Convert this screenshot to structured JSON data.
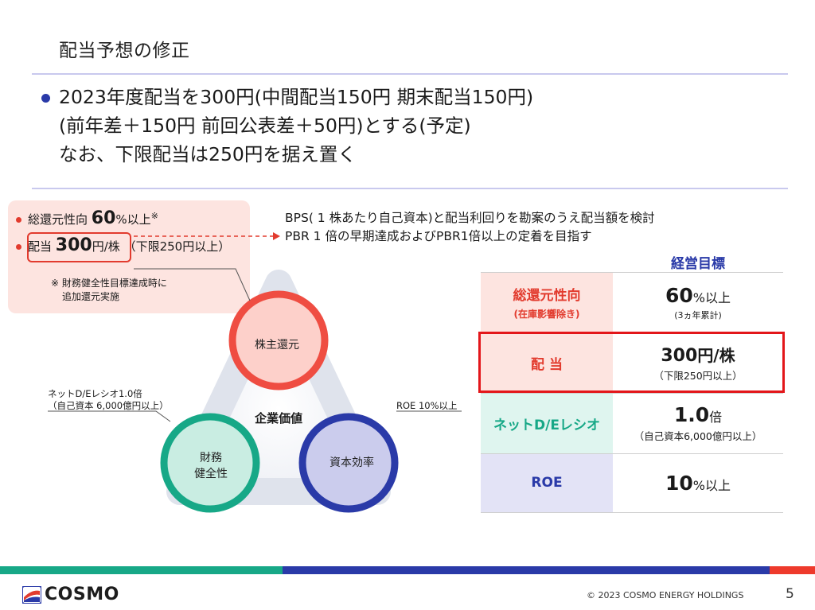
{
  "title": "配当予想の修正",
  "bullet": {
    "lines": [
      "2023年度配当を300円(中間配当150円 期末配当150円)",
      "(前年差＋150円 前回公表差＋50円)とする(予定)",
      "なお、下限配当は250円を据え置く"
    ]
  },
  "policy": {
    "line1_prefix": "総還元性向",
    "line1_value": "60",
    "line1_suffix": "%以上",
    "line1_mark": "※",
    "line2_prefix": "配当",
    "line2_value": "300",
    "line2_suffix": "円/株",
    "line2_note": "（下限250円以上）",
    "footnote1": "※ 財務健全性目標達成時に",
    "footnote2": "追加還元実施"
  },
  "explanation": {
    "line1": "BPS( 1 株あたり自己資本)と配当利回りを勘案のうえ配当額を検討",
    "line2": "PBR 1 倍の早期達成およびPBR1倍以上の定着を目指す"
  },
  "diagram": {
    "top_circle": "株主還元",
    "left_circle_line1": "財務",
    "left_circle_line2": "健全性",
    "right_circle": "資本効率",
    "center": "企業価値",
    "left_callout_line1": "ネットD/Eレシオ1.0倍",
    "left_callout_line2": "（自己資本 6,000億円以上）",
    "right_callout": "ROE 10%以上"
  },
  "goals": {
    "header": "経営目標",
    "rows": [
      {
        "label": "総還元性向",
        "label_sub": "(在庫影響除き)",
        "value_big": "60",
        "value_unit": "%以上",
        "value_sub": "(3ヵ年累計)"
      },
      {
        "label": "配 当",
        "label_sub": "",
        "value_big": "300",
        "value_unit": "円/株",
        "value_sub": "（下限250円以上）"
      },
      {
        "label": "ネットD/Eレシオ",
        "label_sub": "",
        "value_big": "1.0",
        "value_unit": "倍",
        "value_sub": "（自己資本6,000億円以上）"
      },
      {
        "label": "ROE",
        "label_sub": "",
        "value_big": "10",
        "value_unit": "%以上",
        "value_sub": ""
      }
    ]
  },
  "colors": {
    "accent_blue": "#2a3aa8",
    "accent_red": "#e23b2e",
    "accent_green": "#17a887"
  },
  "footer": {
    "logo_text": "COSMO",
    "copyright": "© 2023 COSMO ENERGY HOLDINGS",
    "page_number": "5"
  }
}
